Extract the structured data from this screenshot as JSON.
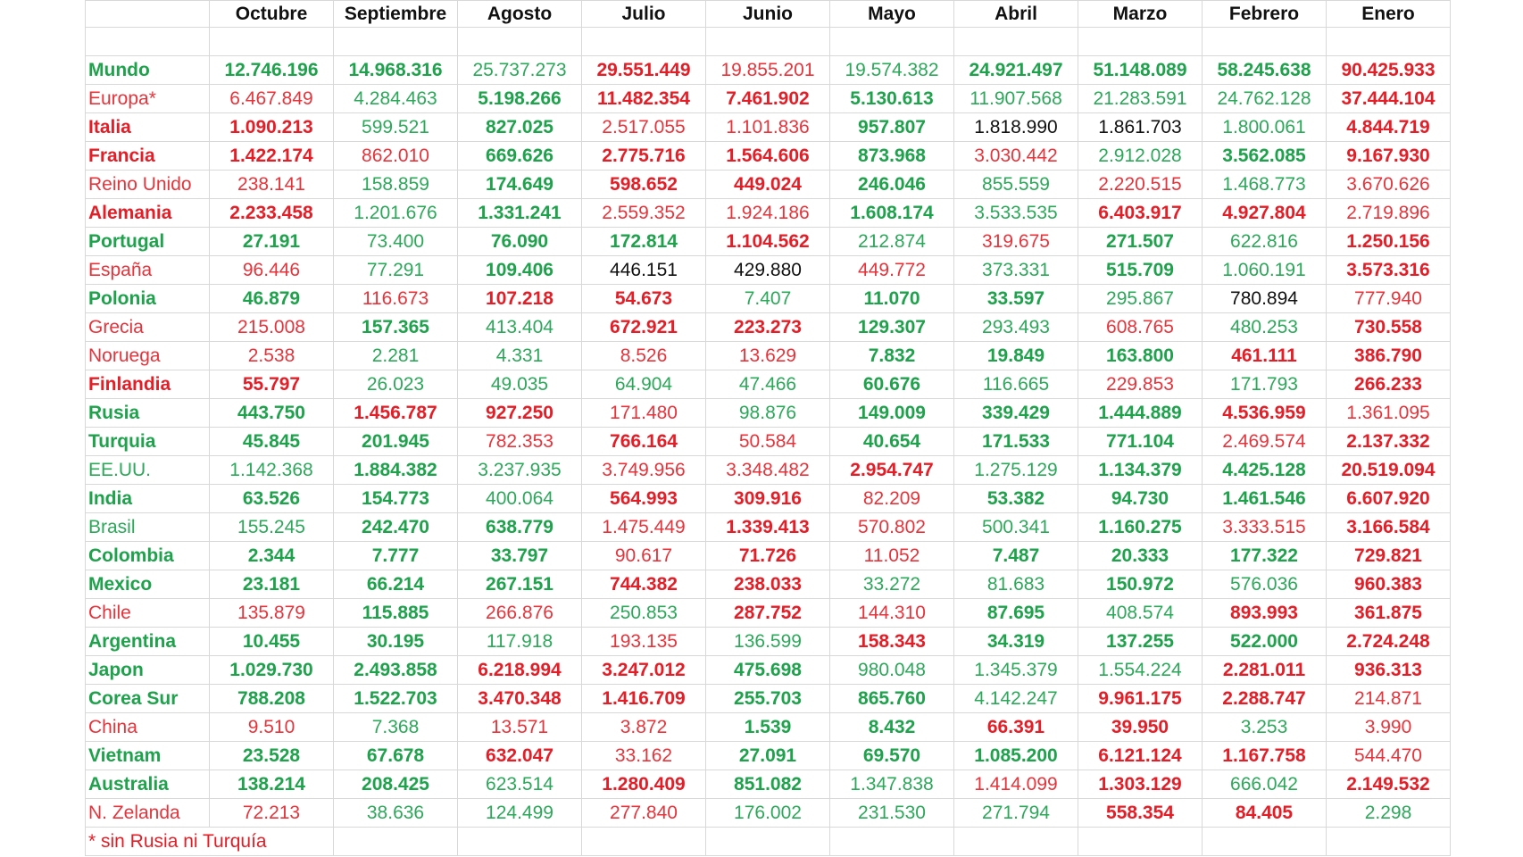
{
  "table": {
    "columns": [
      "Octubre",
      "Septiembre",
      "Agosto",
      "Julio",
      "Junio",
      "Mayo",
      "Abril",
      "Marzo",
      "Febrero",
      "Enero"
    ],
    "rows": [
      {
        "label": "Mundo",
        "values": [
          "12.746.196",
          "14.968.316",
          "25.737.273",
          "29.551.449",
          "19.855.201",
          "19.574.382",
          "24.921.497",
          "51.148.089",
          "58.245.638",
          "90.425.933"
        ],
        "style": "GGGgRrgGGGR"
      },
      {
        "label": "Europa*",
        "values": [
          "6.467.849",
          "4.284.463",
          "5.198.266",
          "11.482.354",
          "7.461.902",
          "5.130.613",
          "11.907.568",
          "21.283.591",
          "24.762.128",
          "37.444.104"
        ],
        "style": "rrgGRRGgggR"
      },
      {
        "label": "Italia",
        "values": [
          "1.090.213",
          "599.521",
          "827.025",
          "2.517.055",
          "1.101.836",
          "957.807",
          "1.818.990",
          "1.861.703",
          "1.800.061",
          "4.844.719"
        ],
        "style": "RRgGrrGkkgR"
      },
      {
        "label": "Francia",
        "values": [
          "1.422.174",
          "862.010",
          "669.626",
          "2.775.716",
          "1.564.606",
          "873.968",
          "3.030.442",
          "2.912.028",
          "3.562.085",
          "9.167.930"
        ],
        "style": "RRrGRRGrgGR"
      },
      {
        "label": "Reino Unido",
        "values": [
          "238.141",
          "158.859",
          "174.649",
          "598.652",
          "449.024",
          "246.046",
          "855.559",
          "2.220.515",
          "1.468.773",
          "3.670.626"
        ],
        "style": "rrgGRRGgrgr"
      },
      {
        "label": "Alemania",
        "values": [
          "2.233.458",
          "1.201.676",
          "1.331.241",
          "2.559.352",
          "1.924.186",
          "1.608.174",
          "3.533.535",
          "6.403.917",
          "4.927.804",
          "2.719.896"
        ],
        "style": "RRgGrrGgRRr"
      },
      {
        "label": "Portugal",
        "values": [
          "27.191",
          "73.400",
          "76.090",
          "172.814",
          "1.104.562",
          "212.874",
          "319.675",
          "271.507",
          "622.816",
          "1.250.156"
        ],
        "style": "GGgGGRgrGgR"
      },
      {
        "label": "España",
        "values": [
          "96.446",
          "77.291",
          "109.406",
          "446.151",
          "429.880",
          "449.772",
          "373.331",
          "515.709",
          "1.060.191",
          "3.573.316"
        ],
        "style": "rrgGkkrgGgR"
      },
      {
        "label": "Polonia",
        "values": [
          "46.879",
          "116.673",
          "107.218",
          "54.673",
          "7.407",
          "11.070",
          "33.597",
          "295.867",
          "780.894",
          "777.940"
        ],
        "style": "GGrRRgGGgkr"
      },
      {
        "label": "Grecia",
        "values": [
          "215.008",
          "157.365",
          "413.404",
          "672.921",
          "223.273",
          "129.307",
          "293.493",
          "608.765",
          "480.253",
          "730.558"
        ],
        "style": "rrGgRRGgrgR"
      },
      {
        "label": "Noruega",
        "values": [
          "2.538",
          "2.281",
          "4.331",
          "8.526",
          "13.629",
          "7.832",
          "19.849",
          "163.800",
          "461.111",
          "386.790"
        ],
        "style": "rrggrrGGGRR"
      },
      {
        "label": "Finlandia",
        "values": [
          "55.797",
          "26.023",
          "49.035",
          "64.904",
          "47.466",
          "60.676",
          "116.665",
          "229.853",
          "171.793",
          "266.233"
        ],
        "style": "RRggggGgrgR"
      },
      {
        "label": "Rusia",
        "values": [
          "443.750",
          "1.456.787",
          "927.250",
          "171.480",
          "98.876",
          "149.009",
          "339.429",
          "1.444.889",
          "4.536.959",
          "1.361.095"
        ],
        "style": "GGRRrgGGGRr"
      },
      {
        "label": "Turquia",
        "values": [
          "45.845",
          "201.945",
          "782.353",
          "766.164",
          "50.584",
          "40.654",
          "171.533",
          "771.104",
          "2.469.574",
          "2.137.332"
        ],
        "style": "GGGrRrGGGrR"
      },
      {
        "label": "EE.UU.",
        "values": [
          "1.142.368",
          "1.884.382",
          "3.237.935",
          "3.749.956",
          "3.348.482",
          "2.954.747",
          "1.275.129",
          "1.134.379",
          "4.425.128",
          "20.519.094"
        ],
        "style": "ggGgrrRgGGR"
      },
      {
        "label": "India",
        "values": [
          "63.526",
          "154.773",
          "400.064",
          "564.993",
          "309.916",
          "82.209",
          "53.382",
          "94.730",
          "1.461.546",
          "6.607.920"
        ],
        "style": "GGGgRRrGGGR"
      },
      {
        "label": "Brasil",
        "values": [
          "155.245",
          "242.470",
          "638.779",
          "1.475.449",
          "1.339.413",
          "570.802",
          "500.341",
          "1.160.275",
          "3.333.515",
          "3.166.584"
        ],
        "style": "ggGGrRrgGrR"
      },
      {
        "label": "Colombia",
        "values": [
          "2.344",
          "7.777",
          "33.797",
          "90.617",
          "71.726",
          "11.052",
          "7.487",
          "20.333",
          "177.322",
          "729.821"
        ],
        "style": "GGGGrRrGGGR"
      },
      {
        "label": "Mexico",
        "values": [
          "23.181",
          "66.214",
          "267.151",
          "744.382",
          "238.033",
          "33.272",
          "81.683",
          "150.972",
          "576.036",
          "960.383"
        ],
        "style": "GGGGRRggGgR"
      },
      {
        "label": "Chile",
        "values": [
          "135.879",
          "115.885",
          "266.876",
          "250.853",
          "287.752",
          "144.310",
          "87.695",
          "408.574",
          "893.993",
          "361.875"
        ],
        "style": "rrGrgRrGgRR"
      },
      {
        "label": "Argentina",
        "values": [
          "10.455",
          "30.195",
          "117.918",
          "193.135",
          "136.599",
          "158.343",
          "34.319",
          "137.255",
          "522.000",
          "2.724.248"
        ],
        "style": "GGGgrgRGGGR"
      },
      {
        "label": "Japon",
        "values": [
          "1.029.730",
          "2.493.858",
          "6.218.994",
          "3.247.012",
          "475.698",
          "980.048",
          "1.345.379",
          "1.554.224",
          "2.281.011",
          "936.313"
        ],
        "style": "GGGRRGgggRR"
      },
      {
        "label": "Corea Sur",
        "values": [
          "788.208",
          "1.522.703",
          "3.470.348",
          "1.416.709",
          "255.703",
          "865.760",
          "4.142.247",
          "9.961.175",
          "2.288.747",
          "214.871"
        ],
        "style": "GGGRRGGgRRr"
      },
      {
        "label": "China",
        "values": [
          "9.510",
          "7.368",
          "13.571",
          "3.872",
          "1.539",
          "8.432",
          "66.391",
          "39.950",
          "3.253",
          "3.990"
        ],
        "style": "rrgrrGGRRgr"
      },
      {
        "label": "Vietnam",
        "values": [
          "23.528",
          "67.678",
          "632.047",
          "33.162",
          "27.091",
          "69.570",
          "1.085.200",
          "6.121.124",
          "1.167.758",
          "544.470"
        ],
        "style": "GGGRrGGGRRr"
      },
      {
        "label": "Australia",
        "values": [
          "138.214",
          "208.425",
          "623.514",
          "1.280.409",
          "851.082",
          "1.347.838",
          "1.414.099",
          "1.303.129",
          "666.042",
          "2.149.532"
        ],
        "style": "GGGgRGgrRgR"
      },
      {
        "label": "N. Zelanda",
        "values": [
          "72.213",
          "38.636",
          "124.499",
          "277.840",
          "176.002",
          "231.530",
          "271.794",
          "558.354",
          "84.405",
          "2.298"
        ],
        "style": "rrggrgggRRg"
      }
    ],
    "footnote": "* sin Rusia ni Turquía"
  }
}
